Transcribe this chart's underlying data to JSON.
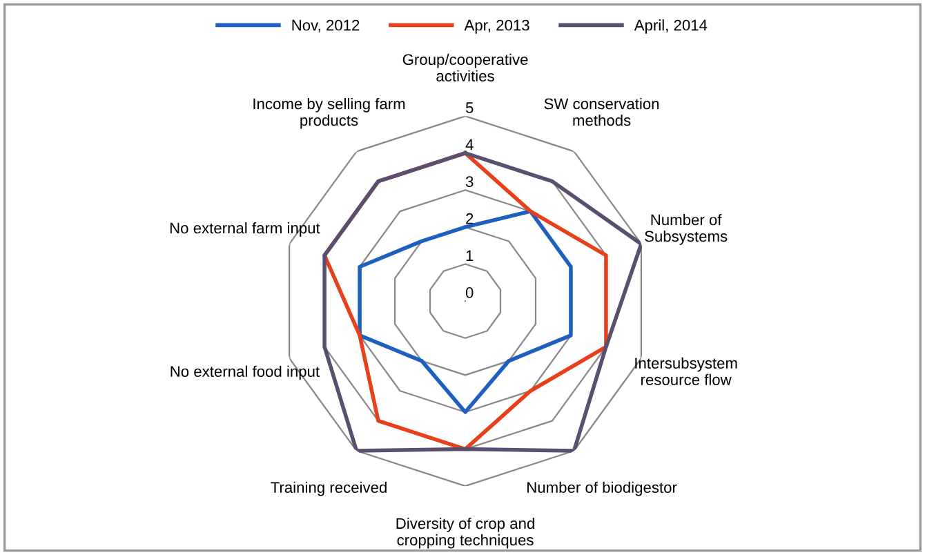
{
  "chart_data": {
    "type": "radar",
    "categories": [
      "Group/cooperative\nactivities",
      "SW conservation\nmethods",
      "Number of\nSubsystems",
      "Intersubsystem\nresource flow",
      "Number of biodigestor",
      "Diversity of crop and\ncropping techniques",
      "Training received",
      "No external food input",
      "No external farm input",
      "Income by selling farm\nproducts"
    ],
    "series": [
      {
        "name": "Nov, 2012",
        "color": "#1f5fc0",
        "values": [
          2,
          3,
          3,
          3,
          2,
          3,
          2,
          3,
          3,
          2
        ]
      },
      {
        "name": "Apr, 2013",
        "color": "#e8401c",
        "values": [
          4,
          3,
          4,
          4,
          3,
          4,
          4,
          3,
          4,
          4
        ]
      },
      {
        "name": "April, 2014",
        "color": "#5a4f6e",
        "values": [
          4,
          4,
          5,
          4,
          5,
          4,
          5,
          4,
          4,
          4
        ]
      }
    ],
    "ylim": [
      0,
      5
    ],
    "yticks": [
      0,
      1,
      2,
      3,
      4,
      5
    ],
    "grid": true,
    "legend": "top",
    "marker": "none",
    "line_style": "solid"
  }
}
